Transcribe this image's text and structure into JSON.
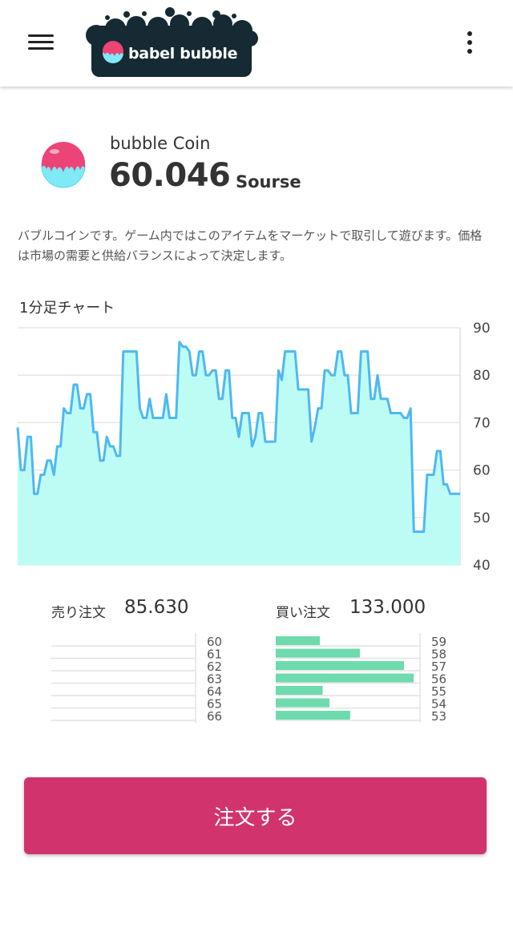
{
  "header": {
    "menu_icon": "hamburger-menu-icon",
    "logo_text": "babel bubble",
    "more_icon": "more-vertical-icon"
  },
  "coin": {
    "name": "bubble Coin",
    "price": "60.046",
    "unit": "Sourse",
    "description": "バブルコインです。ゲーム内ではこのアイテムをマーケットで取引して遊びます。価格は市場の需要と供給バランスによって決定します。"
  },
  "colors": {
    "accent": "#d1346c",
    "line": "#4fb8f0",
    "area": "#bdfcf4",
    "buy_bar": "#6ddbad",
    "coin_pink": "#ec4477",
    "coin_cyan": "#7fe9f5",
    "logo_bg": "#152a32"
  },
  "chart_data": {
    "type": "area",
    "title": "1分足チャート",
    "ylim": [
      40,
      90
    ],
    "yticks": [
      "90",
      "80",
      "70",
      "60",
      "50",
      "40"
    ],
    "grid": true,
    "y_axis": "right",
    "values": [
      69,
      60,
      60,
      67,
      67,
      55,
      55,
      59,
      59,
      62,
      62,
      59,
      65,
      65,
      73,
      72,
      72,
      78,
      78,
      73,
      73,
      76,
      76,
      68,
      68,
      62,
      62,
      67,
      65,
      65,
      63,
      63,
      85,
      85,
      85,
      85,
      85,
      73,
      71,
      71,
      75,
      71,
      71,
      71,
      71,
      76,
      71,
      71,
      71,
      87,
      86,
      86,
      85,
      80,
      80,
      85,
      85,
      80,
      80,
      81,
      81,
      75,
      75,
      81,
      81,
      71,
      71,
      67,
      72,
      72,
      72,
      65,
      67,
      72,
      72,
      66,
      66,
      66,
      66,
      81,
      79,
      85,
      85,
      85,
      85,
      77,
      77,
      77,
      77,
      66,
      69,
      73,
      73,
      81,
      81,
      80,
      80,
      85,
      85,
      80,
      80,
      72,
      72,
      72,
      85,
      85,
      85,
      75,
      75,
      80,
      75,
      75,
      75,
      72,
      72,
      72,
      72,
      71,
      71,
      73,
      47,
      47,
      47,
      47,
      59,
      59,
      59,
      64,
      64,
      57,
      57,
      55,
      55,
      55,
      55
    ]
  },
  "sell": {
    "title": "売り注文",
    "value": "85.630",
    "rows": [
      {
        "label": "60",
        "value": 0
      },
      {
        "label": "61",
        "value": 0
      },
      {
        "label": "62",
        "value": 0
      },
      {
        "label": "63",
        "value": 0
      },
      {
        "label": "64",
        "value": 0
      },
      {
        "label": "65",
        "value": 0
      },
      {
        "label": "66",
        "value": 0
      }
    ]
  },
  "buy": {
    "title": "買い注文",
    "value": "133.000",
    "rows": [
      {
        "label": "59",
        "value": 0.32
      },
      {
        "label": "58",
        "value": 0.61
      },
      {
        "label": "57",
        "value": 0.93
      },
      {
        "label": "56",
        "value": 1.0
      },
      {
        "label": "55",
        "value": 0.34
      },
      {
        "label": "54",
        "value": 0.39
      },
      {
        "label": "53",
        "value": 0.54
      }
    ]
  },
  "order_button": {
    "label": "注文する"
  }
}
